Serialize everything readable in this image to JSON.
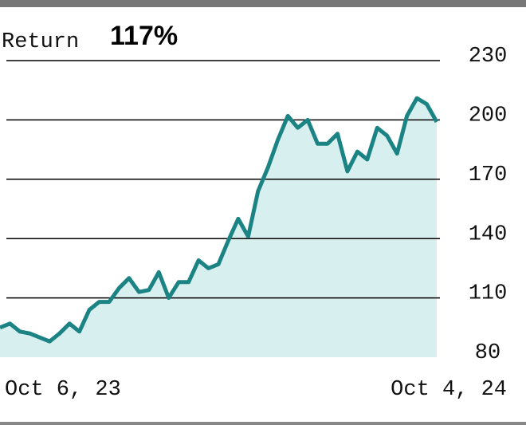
{
  "chart_data": {
    "type": "area",
    "title": "Return",
    "highlight": "117%",
    "categories": [
      "Oct 6, 23",
      null,
      null,
      null,
      null,
      null,
      null,
      null,
      null,
      null,
      null,
      null,
      null,
      null,
      null,
      null,
      null,
      null,
      null,
      null,
      null,
      null,
      null,
      null,
      null,
      null,
      null,
      null,
      null,
      null,
      null,
      null,
      null,
      null,
      null,
      null,
      null,
      null,
      null,
      null,
      null,
      null,
      null,
      null,
      "Oct 4, 24"
    ],
    "values": [
      95,
      97,
      93,
      92,
      90,
      88,
      92,
      97,
      93,
      104,
      108,
      108,
      115,
      120,
      113,
      114,
      123,
      110,
      118,
      118,
      129,
      125,
      127,
      139,
      150,
      141,
      164,
      176,
      190,
      202,
      196,
      200,
      188,
      188,
      193,
      174,
      184,
      180,
      196,
      192,
      183,
      202,
      211,
      208,
      199
    ],
    "color": "#1b8383",
    "fill": "#d8efef",
    "ylim": [
      80,
      230
    ],
    "yticks": [
      80,
      110,
      140,
      170,
      200,
      230
    ],
    "grid": true
  }
}
